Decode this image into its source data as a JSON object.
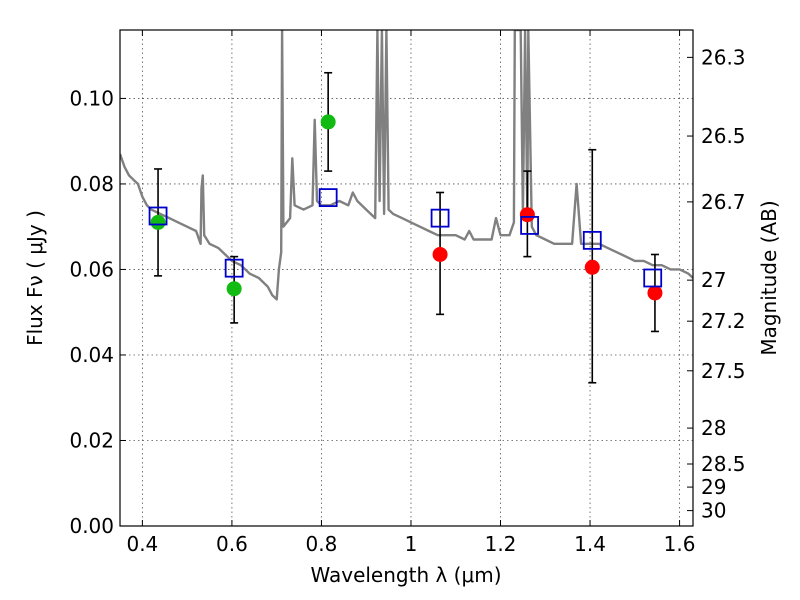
{
  "chart_data": {
    "type": "scatter",
    "title": "",
    "xlabel": "Wavelength  λ (μm)",
    "ylabel": "Flux  Fν  ( μJy )",
    "ylabel_right": "Magnitude (AB)",
    "xlim": [
      0.35,
      1.63
    ],
    "ylim": [
      0.0,
      0.116
    ],
    "grid": true,
    "x_ticks": [
      0.4,
      0.6,
      0.8,
      1.0,
      1.2,
      1.4,
      1.6
    ],
    "x_tick_labels": [
      "0.4",
      "0.6",
      "0.8",
      "1",
      "1.2",
      "1.4",
      "1.6"
    ],
    "y_ticks": [
      0.0,
      0.02,
      0.04,
      0.06,
      0.08,
      0.1
    ],
    "y_tick_labels": [
      "0.00",
      "0.02",
      "0.04",
      "0.06",
      "0.08",
      "0.10"
    ],
    "right_axis_ticks": [
      {
        "label": "26.3",
        "flux": 0.1096
      },
      {
        "label": "26.5",
        "flux": 0.0912
      },
      {
        "label": "26.7",
        "flux": 0.0758
      },
      {
        "label": "27",
        "flux": 0.0575
      },
      {
        "label": "27.2",
        "flux": 0.0479
      },
      {
        "label": "27.5",
        "flux": 0.0363
      },
      {
        "label": "28",
        "flux": 0.0229
      },
      {
        "label": "28.5",
        "flux": 0.0145
      },
      {
        "label": "29",
        "flux": 0.0091
      },
      {
        "label": "30",
        "flux": 0.0036
      }
    ],
    "colors": {
      "spectrum": "#808080",
      "green_points": "#11bb11",
      "red_points": "#ff0000",
      "model_squares": "#0000cc",
      "errorbars": "#000000"
    },
    "series": [
      {
        "kind": "line",
        "points": [
          [
            0.35,
            0.087
          ],
          [
            0.36,
            0.084
          ],
          [
            0.37,
            0.082
          ],
          [
            0.38,
            0.081
          ],
          [
            0.39,
            0.08
          ],
          [
            0.4,
            0.077
          ],
          [
            0.41,
            0.075
          ],
          [
            0.42,
            0.074
          ],
          [
            0.44,
            0.073
          ],
          [
            0.46,
            0.072
          ],
          [
            0.48,
            0.071
          ],
          [
            0.5,
            0.07
          ],
          [
            0.52,
            0.069
          ],
          [
            0.53,
            0.066
          ],
          [
            0.532,
            0.079
          ],
          [
            0.535,
            0.082
          ],
          [
            0.538,
            0.068
          ],
          [
            0.55,
            0.066
          ],
          [
            0.57,
            0.065
          ],
          [
            0.59,
            0.063
          ],
          [
            0.6,
            0.062
          ],
          [
            0.62,
            0.061
          ],
          [
            0.64,
            0.059
          ],
          [
            0.66,
            0.058
          ],
          [
            0.68,
            0.056
          ],
          [
            0.69,
            0.054
          ],
          [
            0.7,
            0.053
          ],
          [
            0.705,
            0.06
          ],
          [
            0.71,
            0.064
          ],
          [
            0.712,
            0.116
          ],
          [
            0.715,
            0.07
          ],
          [
            0.73,
            0.072
          ],
          [
            0.735,
            0.086
          ],
          [
            0.74,
            0.075
          ],
          [
            0.76,
            0.074
          ],
          [
            0.78,
            0.075
          ],
          [
            0.785,
            0.095
          ],
          [
            0.79,
            0.076
          ],
          [
            0.8,
            0.075
          ],
          [
            0.82,
            0.075
          ],
          [
            0.84,
            0.076
          ],
          [
            0.86,
            0.075
          ],
          [
            0.87,
            0.078
          ],
          [
            0.88,
            0.076
          ],
          [
            0.9,
            0.074
          ],
          [
            0.92,
            0.072
          ],
          [
            0.925,
            0.116
          ],
          [
            0.93,
            0.076
          ],
          [
            0.935,
            0.116
          ],
          [
            0.94,
            0.073
          ],
          [
            0.945,
            0.116
          ],
          [
            0.95,
            0.074
          ],
          [
            0.96,
            0.073
          ],
          [
            0.98,
            0.072
          ],
          [
            1.0,
            0.071
          ],
          [
            1.02,
            0.07
          ],
          [
            1.04,
            0.069
          ],
          [
            1.06,
            0.068
          ],
          [
            1.08,
            0.068
          ],
          [
            1.1,
            0.068
          ],
          [
            1.12,
            0.067
          ],
          [
            1.13,
            0.069
          ],
          [
            1.14,
            0.067
          ],
          [
            1.16,
            0.067
          ],
          [
            1.18,
            0.067
          ],
          [
            1.19,
            0.072
          ],
          [
            1.2,
            0.068
          ],
          [
            1.22,
            0.068
          ],
          [
            1.23,
            0.071
          ],
          [
            1.232,
            0.116
          ],
          [
            1.245,
            0.116
          ],
          [
            1.25,
            0.073
          ],
          [
            1.255,
            0.116
          ],
          [
            1.26,
            0.072
          ],
          [
            1.262,
            0.116
          ],
          [
            1.27,
            0.07
          ],
          [
            1.28,
            0.068
          ],
          [
            1.3,
            0.067
          ],
          [
            1.32,
            0.066
          ],
          [
            1.34,
            0.066
          ],
          [
            1.36,
            0.066
          ],
          [
            1.37,
            0.08
          ],
          [
            1.38,
            0.066
          ],
          [
            1.4,
            0.066
          ],
          [
            1.42,
            0.066
          ],
          [
            1.44,
            0.065
          ],
          [
            1.46,
            0.064
          ],
          [
            1.48,
            0.063
          ],
          [
            1.5,
            0.062
          ],
          [
            1.52,
            0.062
          ],
          [
            1.54,
            0.061
          ],
          [
            1.56,
            0.061
          ],
          [
            1.58,
            0.06
          ],
          [
            1.6,
            0.06
          ],
          [
            1.62,
            0.059
          ],
          [
            1.63,
            0.058
          ]
        ]
      },
      {
        "kind": "points",
        "marker": "circle",
        "color": "green",
        "points": [
          [
            0.435,
            0.071
          ],
          [
            0.605,
            0.0555
          ],
          [
            0.815,
            0.0945
          ]
        ],
        "errors": [
          [
            0.0585,
            0.0835
          ],
          [
            0.0475,
            0.063
          ],
          [
            0.083,
            0.106
          ]
        ]
      },
      {
        "kind": "points",
        "marker": "circle",
        "color": "red",
        "points": [
          [
            1.065,
            0.0635
          ],
          [
            1.26,
            0.0728
          ],
          [
            1.405,
            0.0605
          ],
          [
            1.545,
            0.0545
          ]
        ],
        "errors": [
          [
            0.0495,
            0.078
          ],
          [
            0.063,
            0.083
          ],
          [
            0.0335,
            0.088
          ],
          [
            0.0455,
            0.0635
          ]
        ]
      },
      {
        "kind": "points",
        "marker": "square",
        "color": "blue",
        "points": [
          [
            0.435,
            0.0725
          ],
          [
            0.605,
            0.0603
          ],
          [
            0.815,
            0.0768
          ],
          [
            1.065,
            0.072
          ],
          [
            1.265,
            0.0703
          ],
          [
            1.405,
            0.0668
          ],
          [
            1.54,
            0.058
          ]
        ]
      }
    ]
  }
}
